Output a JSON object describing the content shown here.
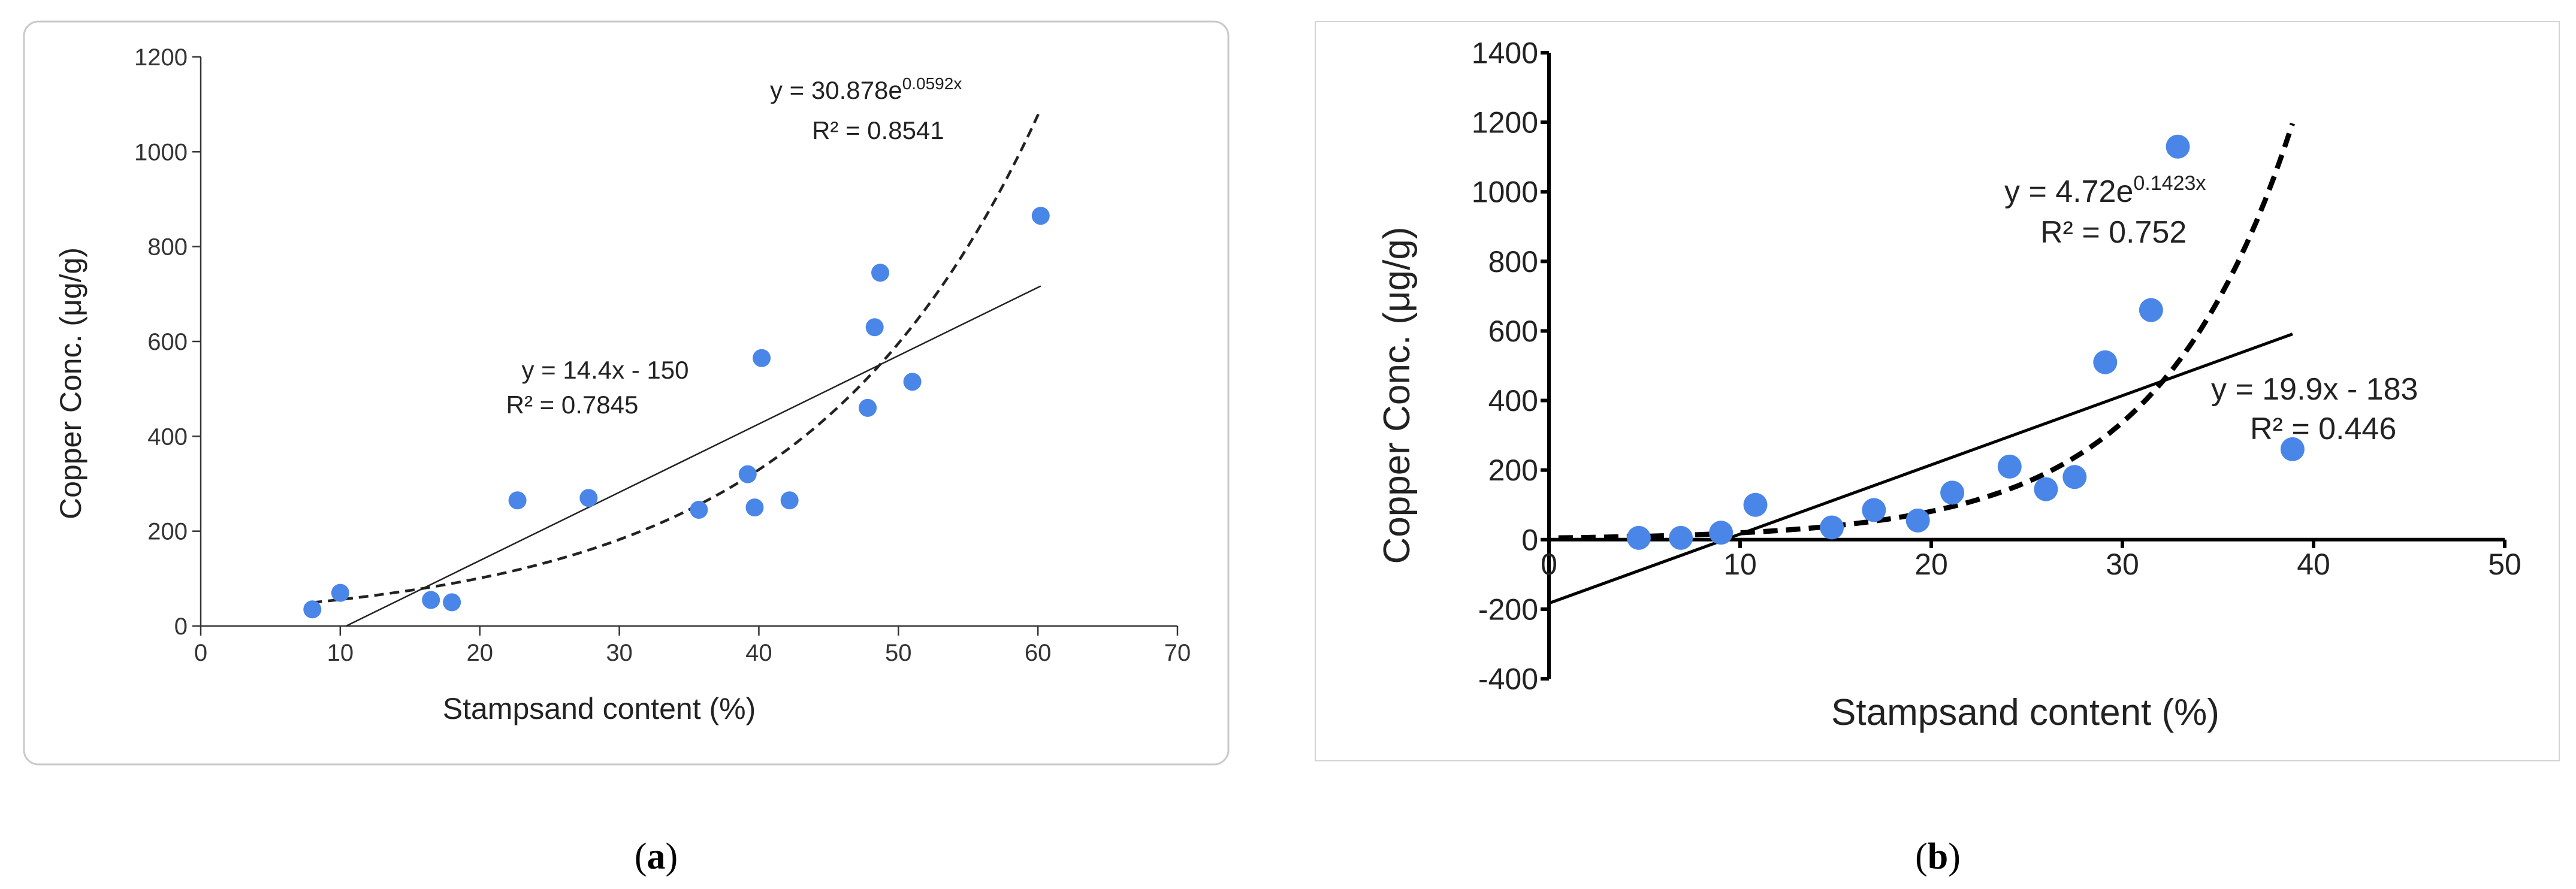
{
  "chart_data": [
    {
      "type": "scatter",
      "panel_label": {
        "open": "(",
        "letter": "a",
        "close": ")"
      },
      "xlabel": "Stampsand content (%)",
      "ylabel": "Copper Conc. (μg/g)",
      "xlim": [
        0,
        70
      ],
      "ylim": [
        0,
        1200
      ],
      "xticks": [
        "0",
        "10",
        "20",
        "30",
        "40",
        "50",
        "60",
        "70"
      ],
      "yticks": [
        "0",
        "200",
        "400",
        "600",
        "800",
        "1000",
        "1200"
      ],
      "points": {
        "x": [
          8,
          10,
          16.5,
          18,
          22.7,
          27.8,
          35.7,
          39.2,
          39.7,
          40.2,
          42.2,
          47.8,
          48.3,
          48.7,
          51,
          60.2
        ],
        "y": [
          35,
          70,
          55,
          50,
          265,
          270,
          245,
          320,
          250,
          565,
          265,
          460,
          630,
          745,
          515,
          865
        ]
      },
      "point_color": "#4a86e8",
      "fits": [
        {
          "kind": "linear",
          "slope": 14.4,
          "intercept": -150,
          "x_range": [
            10.4,
            60.2
          ],
          "style": "solid",
          "equation": "y = 14.4x - 150",
          "r2": "R² = 0.7845"
        },
        {
          "kind": "exponential",
          "a": 30.878,
          "b": 0.0592,
          "x_range": [
            8,
            60.2
          ],
          "style": "dashed",
          "equation_prefix": "y = 30.878e",
          "equation_exp": "0.0592x",
          "r2": "R² = 0.8541"
        }
      ]
    },
    {
      "type": "scatter",
      "panel_label": {
        "open": "(",
        "letter": "b",
        "close": ")"
      },
      "xlabel": "Stampsand content (%)",
      "ylabel": "Copper Conc. (μg/g)",
      "xlim": [
        0,
        50
      ],
      "ylim": [
        -400,
        1400
      ],
      "xticks": [
        "0",
        "10",
        "20",
        "30",
        "40",
        "50"
      ],
      "yticks": [
        "-400",
        "-200",
        "0",
        "200",
        "400",
        "600",
        "800",
        "1000",
        "1200",
        "1400"
      ],
      "points": {
        "x": [
          4.7,
          6.9,
          9,
          10.8,
          14.8,
          17,
          19.3,
          21.1,
          24.1,
          26,
          27.5,
          29.1,
          31.5,
          32.9,
          38.9
        ],
        "y": [
          5,
          5,
          20,
          100,
          35,
          85,
          55,
          135,
          210,
          145,
          180,
          510,
          660,
          1130,
          260
        ]
      },
      "point_color": "#4a86e8",
      "fits": [
        {
          "kind": "linear",
          "slope": 19.9,
          "intercept": -183,
          "x_range": [
            0,
            38.9
          ],
          "style": "solid",
          "equation": "y = 19.9x - 183",
          "r2": "R² = 0.446"
        },
        {
          "kind": "exponential",
          "a": 4.72,
          "b": 0.1423,
          "x_range": [
            0.5,
            38.9
          ],
          "style": "dashed",
          "equation_prefix": "y = 4.72e",
          "equation_exp": "0.1423x",
          "r2": "R² = 0.752"
        }
      ]
    }
  ]
}
